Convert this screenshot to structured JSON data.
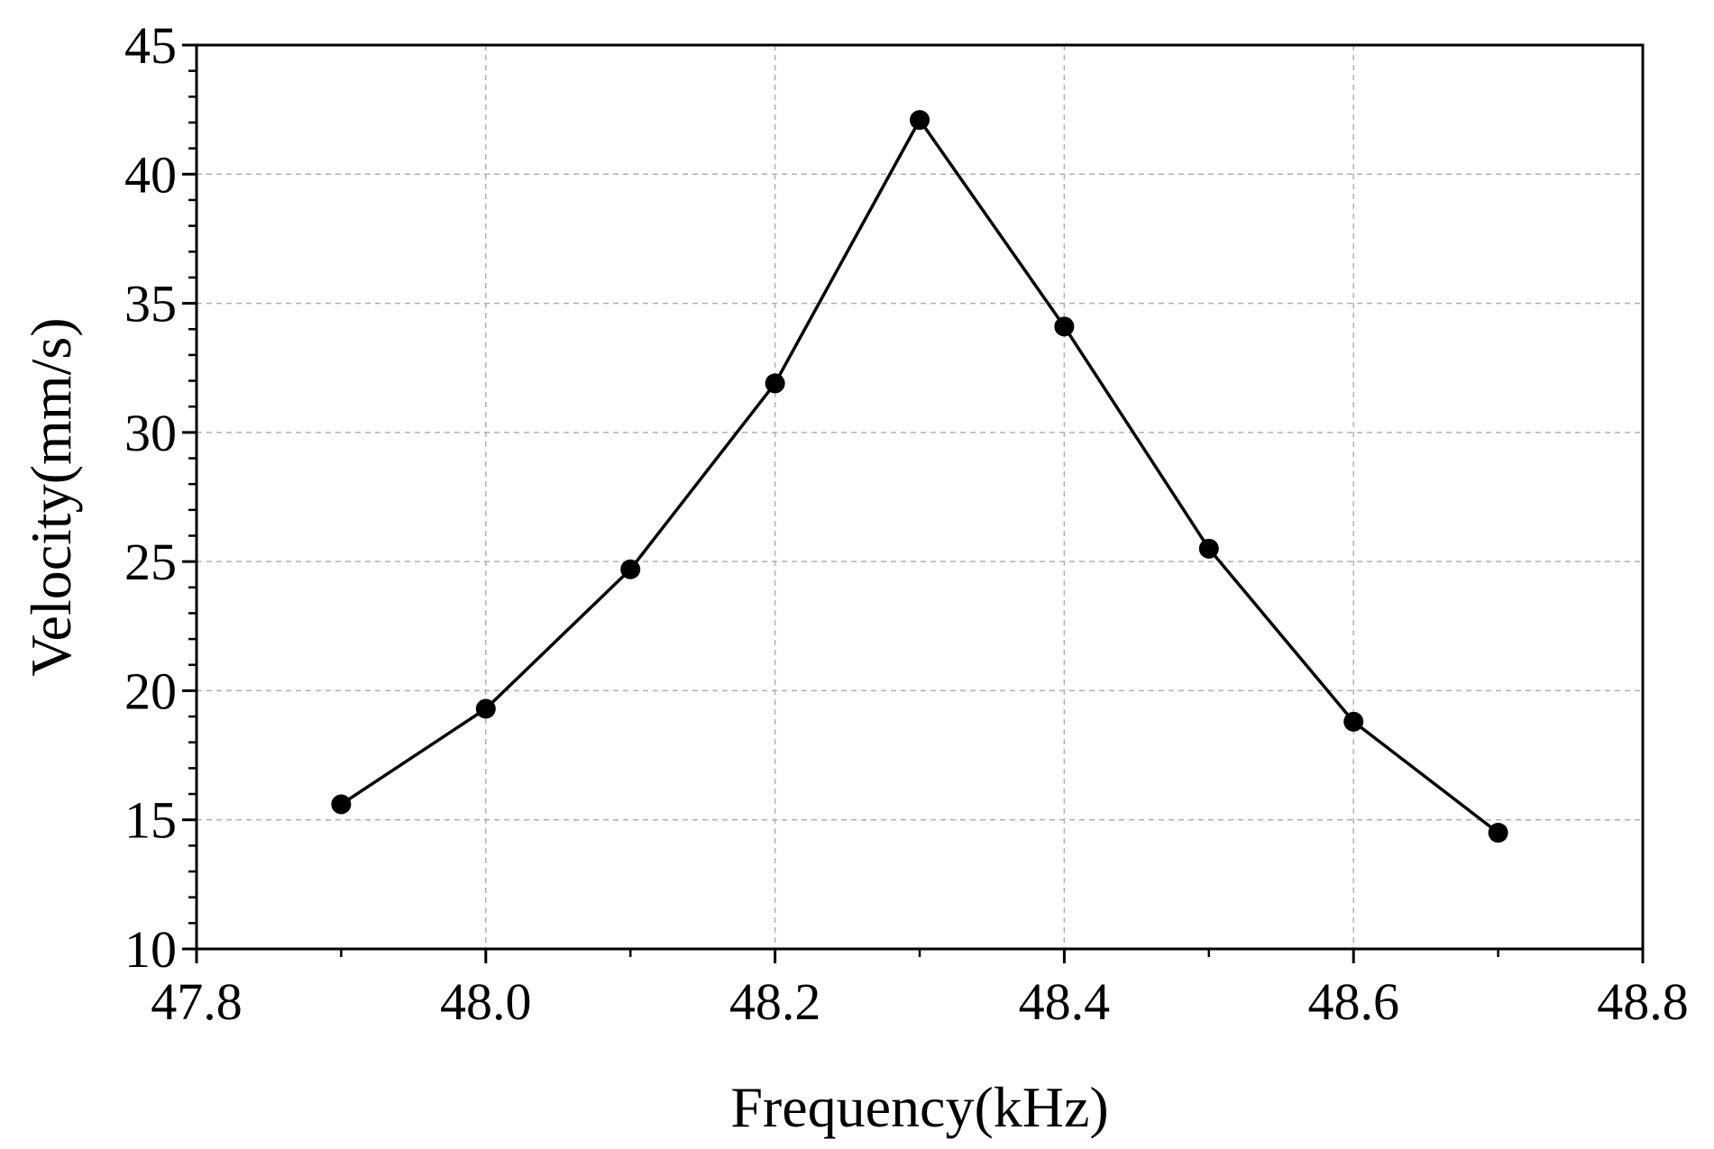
{
  "chart_data": {
    "type": "line",
    "title": "",
    "xlabel": "Frequency(kHz)",
    "ylabel": "Velocity(mm/s)",
    "xlim": [
      47.8,
      48.8
    ],
    "ylim": [
      10,
      45
    ],
    "x_ticks": [
      47.8,
      48.0,
      48.2,
      48.4,
      48.6,
      48.8
    ],
    "x_tick_labels": [
      "47.8",
      "48.0",
      "48.2",
      "48.4",
      "48.6",
      "48.8"
    ],
    "y_ticks": [
      10,
      15,
      20,
      25,
      30,
      35,
      40,
      45
    ],
    "y_tick_labels": [
      "10",
      "15",
      "20",
      "25",
      "30",
      "35",
      "40",
      "45"
    ],
    "grid": true,
    "legend": false,
    "colors": {
      "series": "#000000",
      "grid": "#b0b0b0",
      "axes": "#000000"
    },
    "series": [
      {
        "marker": "circle",
        "x": [
          47.9,
          48.0,
          48.1,
          48.2,
          48.3,
          48.4,
          48.5,
          48.6,
          48.7
        ],
        "y": [
          15.6,
          19.3,
          24.7,
          31.9,
          42.1,
          34.1,
          25.5,
          18.8,
          14.5
        ]
      }
    ]
  }
}
